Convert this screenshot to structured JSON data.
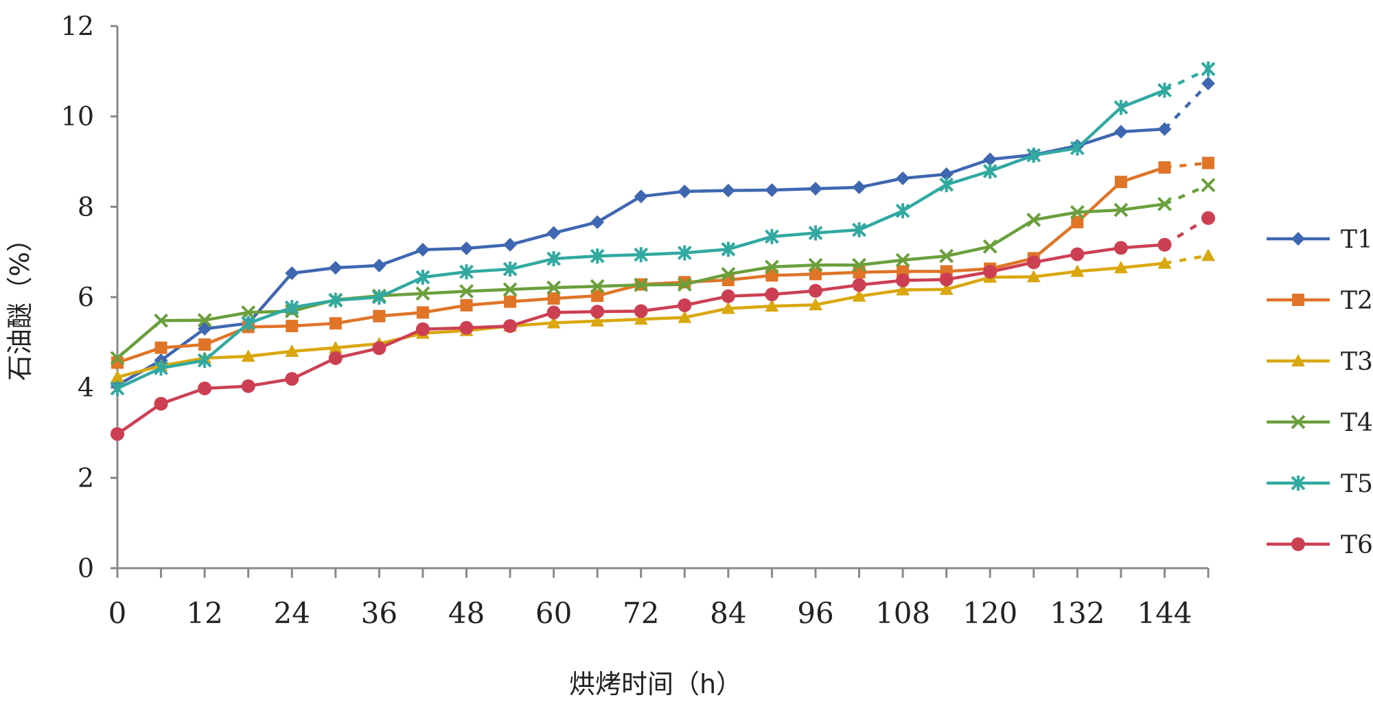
{
  "chart_data": {
    "type": "line",
    "xlabel": "烘烤时间（h）",
    "ylabel": "石油醚（%）",
    "x": [
      0,
      6,
      12,
      18,
      24,
      30,
      36,
      42,
      48,
      54,
      60,
      66,
      72,
      78,
      84,
      90,
      96,
      102,
      108,
      114,
      120,
      126,
      132,
      138,
      144,
      150
    ],
    "x_tick_labels": [
      "0",
      "12",
      "24",
      "36",
      "48",
      "60",
      "72",
      "84",
      "96",
      "108",
      "120",
      "132",
      "144"
    ],
    "y_tick_labels": [
      "0",
      "2",
      "4",
      "6",
      "8",
      "10",
      "12"
    ],
    "xlim": [
      0,
      150
    ],
    "ylim": [
      0,
      12
    ],
    "dashed_last_segment": true,
    "legend_position": "right",
    "series": [
      {
        "name": "T1",
        "color": "#3F67B1",
        "marker": "diamond",
        "values": [
          4.05,
          4.6,
          5.3,
          5.42,
          6.53,
          6.65,
          6.7,
          7.05,
          7.08,
          7.16,
          7.42,
          7.66,
          8.23,
          8.34,
          8.36,
          8.37,
          8.4,
          8.43,
          8.63,
          8.72,
          9.05,
          9.15,
          9.35,
          9.66,
          9.72,
          10.73
        ]
      },
      {
        "name": "T2",
        "color": "#E07427",
        "marker": "square",
        "values": [
          4.55,
          4.88,
          4.95,
          5.34,
          5.36,
          5.42,
          5.58,
          5.66,
          5.82,
          5.9,
          5.97,
          6.03,
          6.28,
          6.33,
          6.38,
          6.48,
          6.51,
          6.55,
          6.57,
          6.57,
          6.63,
          6.86,
          7.66,
          8.55,
          8.87,
          8.97
        ]
      },
      {
        "name": "T3",
        "color": "#D9A70E",
        "marker": "triangle",
        "values": [
          4.23,
          4.48,
          4.65,
          4.69,
          4.8,
          4.88,
          4.97,
          5.2,
          5.26,
          5.36,
          5.43,
          5.47,
          5.51,
          5.55,
          5.75,
          5.8,
          5.83,
          6.02,
          6.16,
          6.17,
          6.44,
          6.45,
          6.57,
          6.65,
          6.75,
          6.92
        ]
      },
      {
        "name": "T4",
        "color": "#6A9F3C",
        "marker": "x",
        "values": [
          4.65,
          5.48,
          5.49,
          5.66,
          5.69,
          5.94,
          6.03,
          6.08,
          6.13,
          6.17,
          6.21,
          6.24,
          6.27,
          6.28,
          6.51,
          6.67,
          6.71,
          6.71,
          6.82,
          6.91,
          7.12,
          7.71,
          7.88,
          7.93,
          8.06,
          8.48
        ]
      },
      {
        "name": "T5",
        "color": "#31A9A1",
        "marker": "star",
        "values": [
          3.98,
          4.43,
          4.6,
          5.42,
          5.77,
          5.93,
          6.0,
          6.44,
          6.56,
          6.62,
          6.85,
          6.91,
          6.94,
          6.98,
          7.06,
          7.34,
          7.42,
          7.49,
          7.91,
          8.49,
          8.79,
          9.14,
          9.3,
          10.2,
          10.58,
          11.05
        ]
      },
      {
        "name": "T6",
        "color": "#CC3F52",
        "marker": "circle",
        "values": [
          2.97,
          3.64,
          3.98,
          4.03,
          4.19,
          4.65,
          4.87,
          5.29,
          5.32,
          5.36,
          5.66,
          5.68,
          5.69,
          5.82,
          6.02,
          6.06,
          6.14,
          6.27,
          6.37,
          6.39,
          6.56,
          6.77,
          6.95,
          7.09,
          7.16,
          7.75
        ]
      }
    ]
  }
}
